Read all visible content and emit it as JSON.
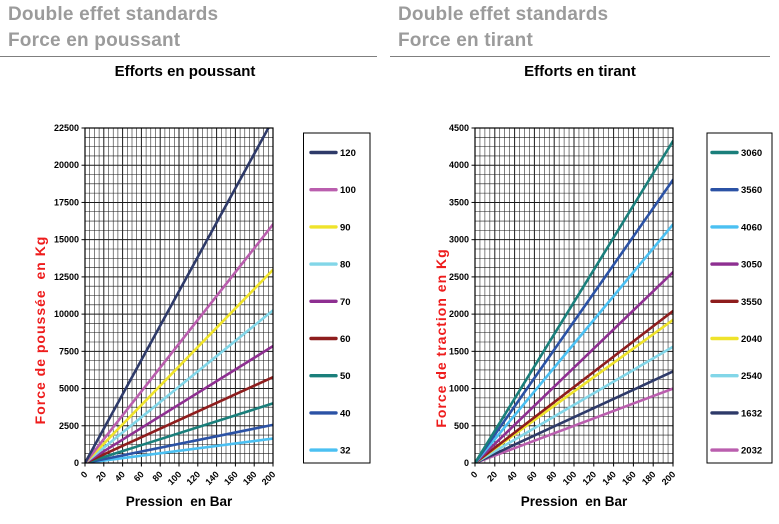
{
  "left_panel": {
    "header_line1": "Double effet standards",
    "header_line2": "Force en poussant",
    "chart_title": "Efforts en poussant",
    "xlabel": "Pression  en Bar",
    "ylabel": "Force de poussée  en Kg"
  },
  "right_panel": {
    "header_line1": "Double effet standards",
    "header_line2": "Force en tirant",
    "chart_title": "Efforts en tirant",
    "xlabel": "Pression  en Bar",
    "ylabel": "Force de traction en Kg"
  },
  "colors": {
    "header_gray": "#9B9B9B",
    "axis_title_red": "#EE1C1C",
    "grid_black": "#1A1A1A"
  },
  "chart_data": [
    {
      "type": "line",
      "title": "Efforts en poussant",
      "xlabel": "Pression  en Bar",
      "ylabel": "Force de poussée  en Kg",
      "xlim": [
        0,
        200
      ],
      "ylim": [
        0,
        22500
      ],
      "x_ticks": [
        0,
        20,
        40,
        60,
        80,
        100,
        120,
        140,
        160,
        180,
        200
      ],
      "y_ticks": [
        0,
        2500,
        5000,
        7500,
        10000,
        12500,
        15000,
        17500,
        20000,
        22500
      ],
      "x_major_step": 20,
      "x_minor_step": 5,
      "y_major_step": 2500,
      "y_minor_step": 625,
      "grid": true,
      "legend_position": "right",
      "series": [
        {
          "name": "120",
          "color": "#2E3A69",
          "x": [
            0,
            200
          ],
          "y": [
            0,
            23066
          ]
        },
        {
          "name": "100",
          "color": "#BA5EAE",
          "x": [
            0,
            200
          ],
          "y": [
            0,
            16022
          ]
        },
        {
          "name": "90",
          "color": "#EFE32B",
          "x": [
            0,
            200
          ],
          "y": [
            0,
            12978
          ]
        },
        {
          "name": "80",
          "color": "#82D6E8",
          "x": [
            0,
            200
          ],
          "y": [
            0,
            10254
          ]
        },
        {
          "name": "70",
          "color": "#8E2F91",
          "x": [
            0,
            200
          ],
          "y": [
            0,
            7851
          ]
        },
        {
          "name": "60",
          "color": "#8E1D1D",
          "x": [
            0,
            200
          ],
          "y": [
            0,
            5767
          ]
        },
        {
          "name": "50",
          "color": "#1A7F7B",
          "x": [
            0,
            200
          ],
          "y": [
            0,
            4005
          ]
        },
        {
          "name": "40",
          "color": "#2B52A5",
          "x": [
            0,
            200
          ],
          "y": [
            0,
            2563
          ]
        },
        {
          "name": "32",
          "color": "#4BC0F2",
          "x": [
            0,
            200
          ],
          "y": [
            0,
            1641
          ]
        }
      ]
    },
    {
      "type": "line",
      "title": "Efforts en tirant",
      "xlabel": "Pression  en Bar",
      "ylabel": "Force de traction en Kg",
      "xlim": [
        0,
        200
      ],
      "ylim": [
        0,
        4500
      ],
      "x_ticks": [
        0,
        20,
        40,
        60,
        80,
        100,
        120,
        140,
        160,
        180,
        200
      ],
      "y_ticks": [
        0,
        500,
        1000,
        1500,
        2000,
        2500,
        3000,
        3500,
        4000,
        4500
      ],
      "x_major_step": 20,
      "x_minor_step": 5,
      "y_major_step": 500,
      "y_minor_step": 125,
      "grid": true,
      "legend_position": "right",
      "series": [
        {
          "name": "3060",
          "color": "#1A7F7B",
          "x": [
            0,
            200
          ],
          "y": [
            0,
            4325
          ]
        },
        {
          "name": "3560",
          "color": "#2B52A5",
          "x": [
            0,
            200
          ],
          "y": [
            0,
            3804
          ]
        },
        {
          "name": "4060",
          "color": "#4BC0F2",
          "x": [
            0,
            200
          ],
          "y": [
            0,
            3204
          ]
        },
        {
          "name": "3050",
          "color": "#8E2F91",
          "x": [
            0,
            200
          ],
          "y": [
            0,
            2563
          ]
        },
        {
          "name": "3550",
          "color": "#8E1D1D",
          "x": [
            0,
            200
          ],
          "y": [
            0,
            2042
          ]
        },
        {
          "name": "2040",
          "color": "#EFE32B",
          "x": [
            0,
            200
          ],
          "y": [
            0,
            1922
          ]
        },
        {
          "name": "2540",
          "color": "#82D6E8",
          "x": [
            0,
            200
          ],
          "y": [
            0,
            1562
          ]
        },
        {
          "name": "1632",
          "color": "#2E3A69",
          "x": [
            0,
            200
          ],
          "y": [
            0,
            1230
          ]
        },
        {
          "name": "2032",
          "color": "#BA5EAE",
          "x": [
            0,
            200
          ],
          "y": [
            0,
            1000
          ]
        }
      ]
    }
  ]
}
